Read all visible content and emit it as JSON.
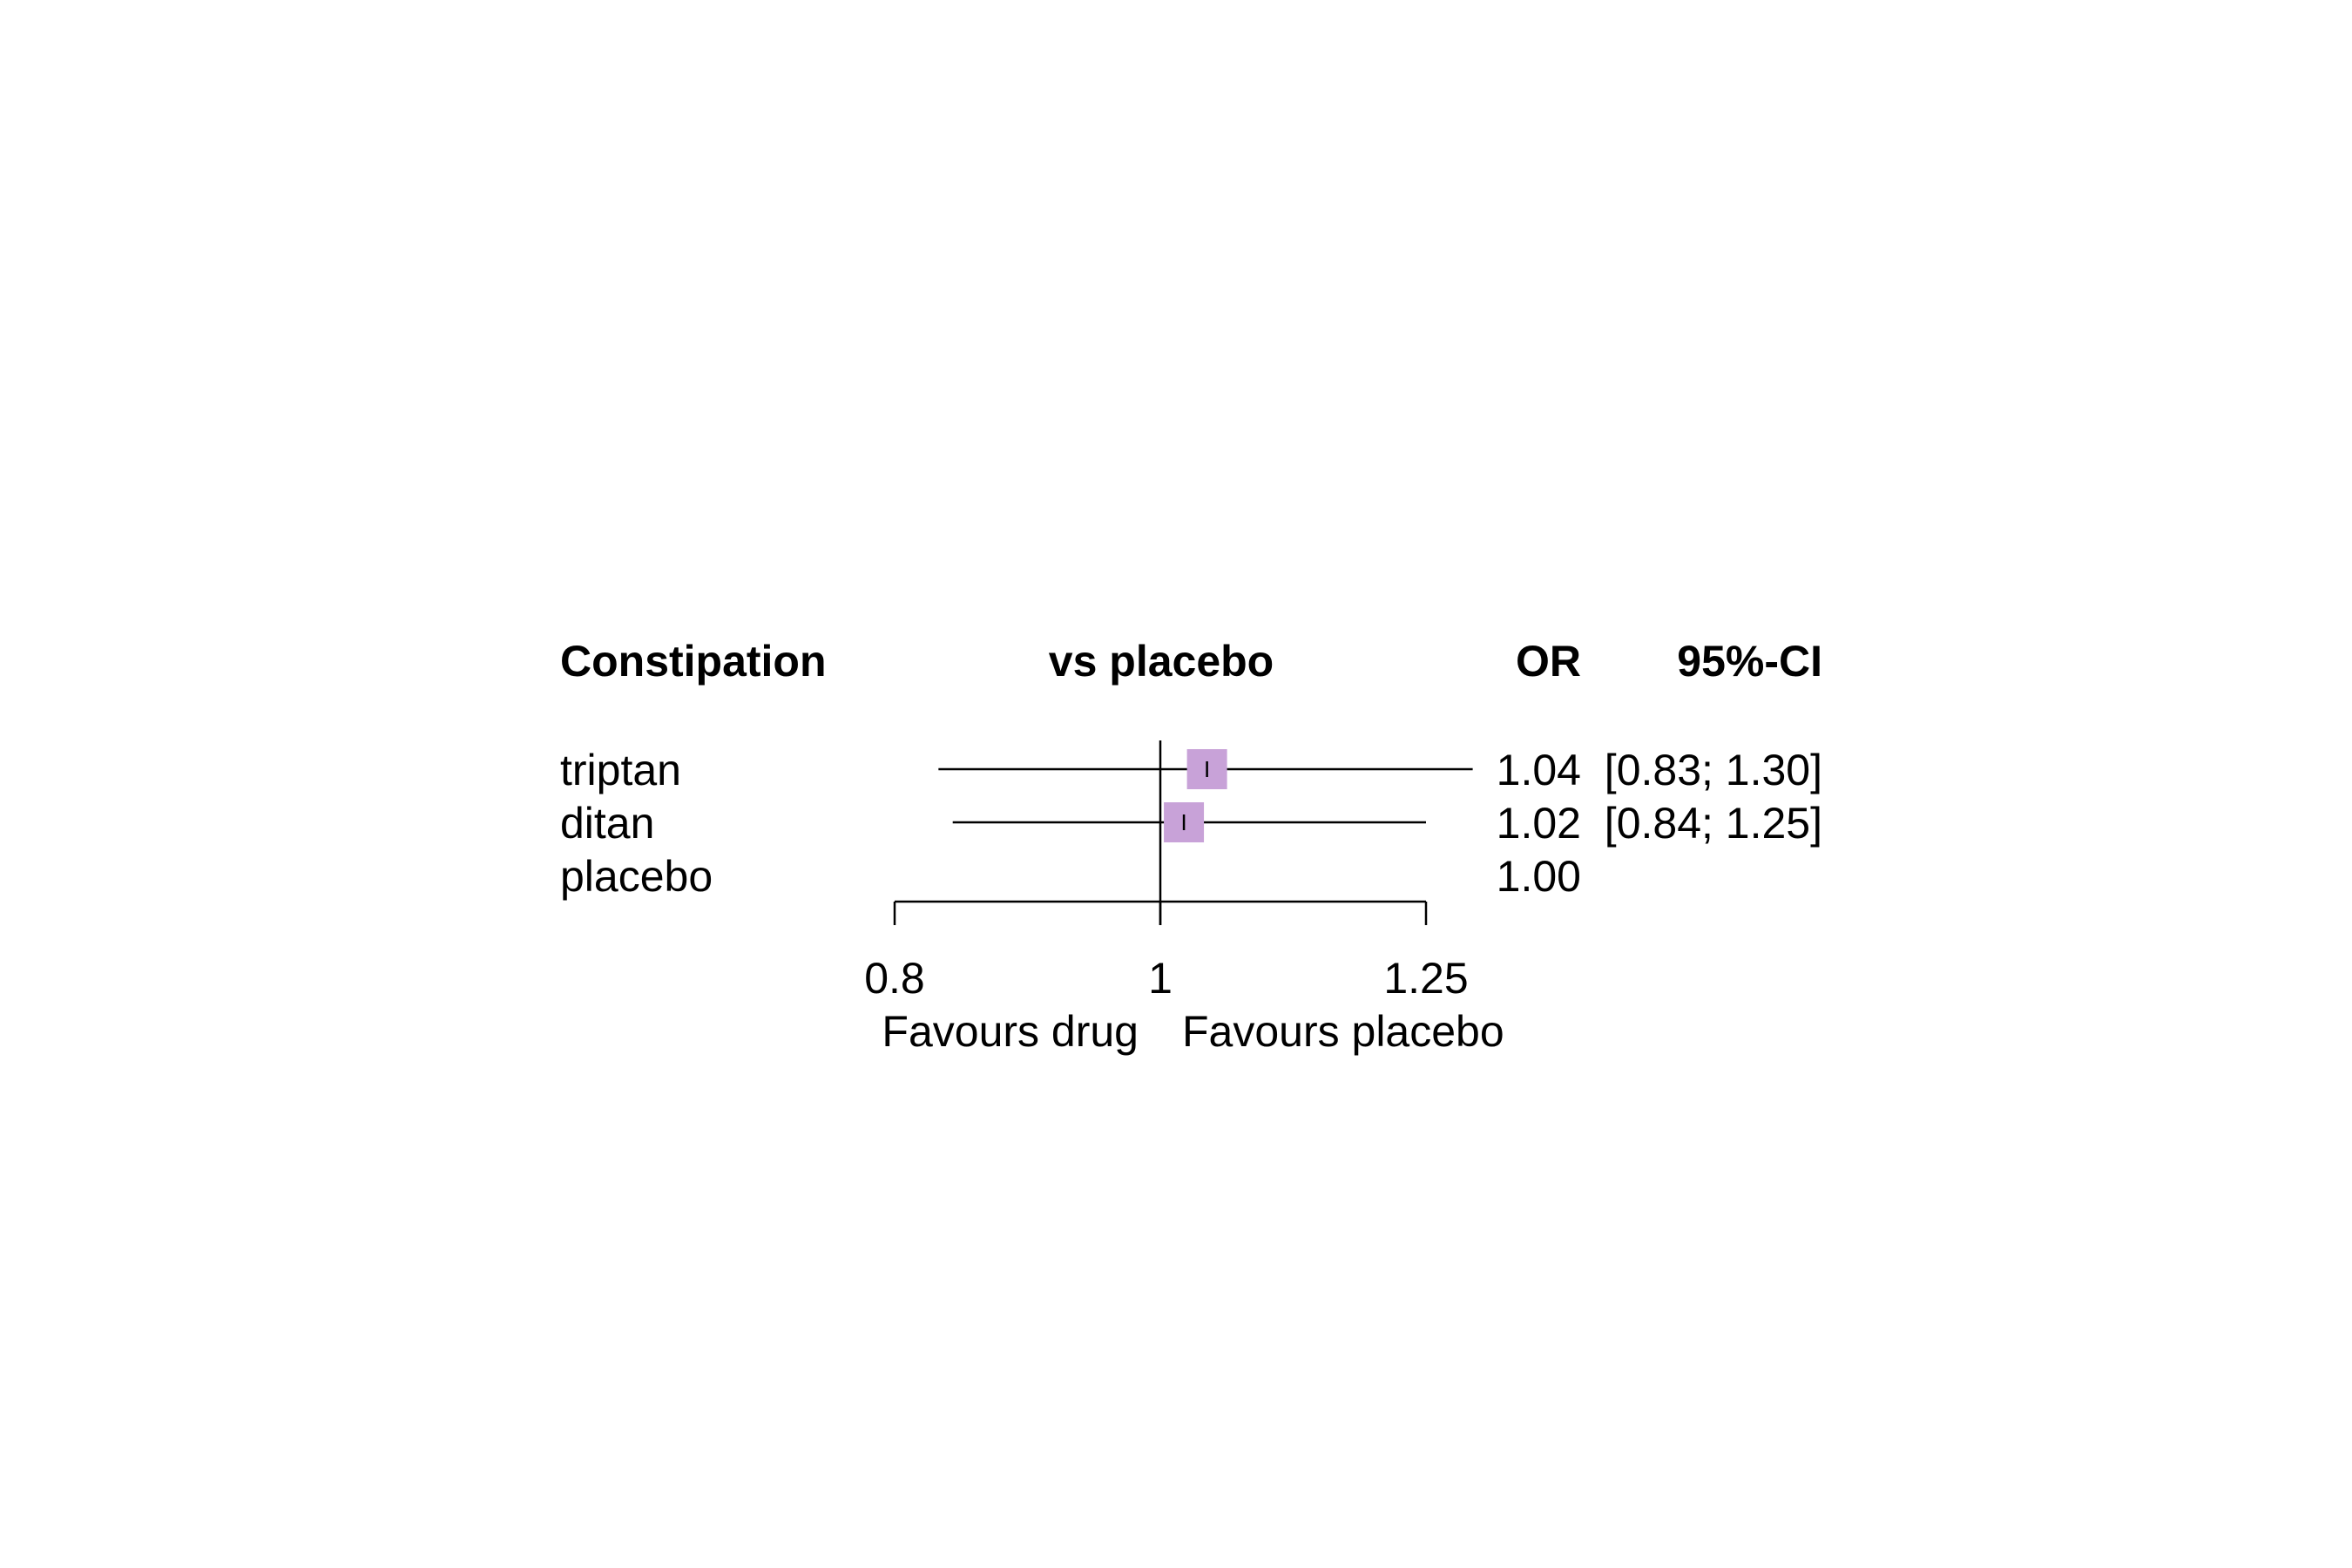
{
  "chart_data": {
    "type": "forest",
    "scale": "log",
    "headers": {
      "outcome": "Constipation",
      "comparison": "vs placebo",
      "estimate": "OR",
      "ci": "95%-CI"
    },
    "rows": [
      {
        "label": "triptan",
        "or": 1.04,
        "lower": 0.83,
        "upper": 1.3,
        "or_text": "1.04",
        "ci_text": "[0.83; 1.30]"
      },
      {
        "label": "ditan",
        "or": 1.02,
        "lower": 0.84,
        "upper": 1.25,
        "or_text": "1.02",
        "ci_text": "[0.84; 1.25]"
      },
      {
        "label": "placebo",
        "or": 1.0,
        "or_text": "1.00",
        "ci_text": ""
      }
    ],
    "x_ticks": [
      {
        "value": 0.8,
        "label": "0.8"
      },
      {
        "value": 1,
        "label": "1"
      },
      {
        "value": 1.25,
        "label": "1.25"
      }
    ],
    "xlim": [
      0.8,
      1.25
    ],
    "reference_value": 1,
    "left_label": "Favours drug",
    "right_label": "Favours placebo",
    "marker_color": "#c8a2d8"
  }
}
